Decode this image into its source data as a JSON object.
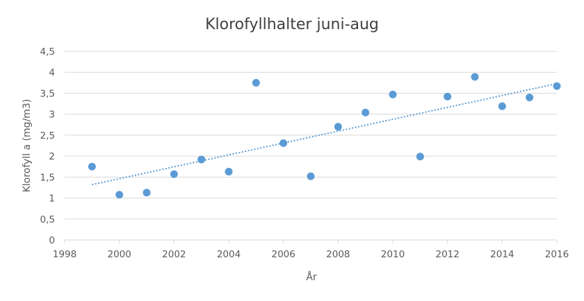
{
  "chart_data": {
    "type": "scatter",
    "title": "Klorofyllhalter juni-aug",
    "xlabel": "År",
    "ylabel": "Klorofyll a (mg/m3)",
    "xlim": [
      1998,
      2016
    ],
    "ylim": [
      0,
      4.5
    ],
    "x_ticks": [
      1998,
      2000,
      2002,
      2004,
      2006,
      2008,
      2010,
      2012,
      2014,
      2016
    ],
    "x_tick_labels": [
      "1998",
      "2000",
      "2002",
      "2004",
      "2006",
      "2008",
      "2010",
      "2012",
      "2014",
      "2016"
    ],
    "y_ticks": [
      0,
      0.5,
      1,
      1.5,
      2,
      2.5,
      3,
      3.5,
      4,
      4.5
    ],
    "y_tick_labels": [
      "0",
      "0,5",
      "1",
      "1,5",
      "2",
      "2,5",
      "3",
      "3,5",
      "4",
      "4,5"
    ],
    "grid": "horizontal",
    "legend": "none",
    "series": [
      {
        "x": [
          1999,
          2000,
          2001,
          2002,
          2003,
          2004,
          2005,
          2006,
          2007,
          2008,
          2009,
          2010,
          2011,
          2012,
          2013,
          2014,
          2015,
          2016
        ],
        "y": [
          1.75,
          1.08,
          1.13,
          1.57,
          1.92,
          1.63,
          3.75,
          2.31,
          1.52,
          2.7,
          3.04,
          3.47,
          1.99,
          3.42,
          3.89,
          3.19,
          3.4,
          3.67
        ],
        "color": "#5b9bd5"
      }
    ],
    "trendline": {
      "type": "linear",
      "style": "dotted",
      "color": "#5b9bd5",
      "x": [
        1999,
        2016
      ],
      "y": [
        1.32,
        3.73
      ]
    }
  }
}
